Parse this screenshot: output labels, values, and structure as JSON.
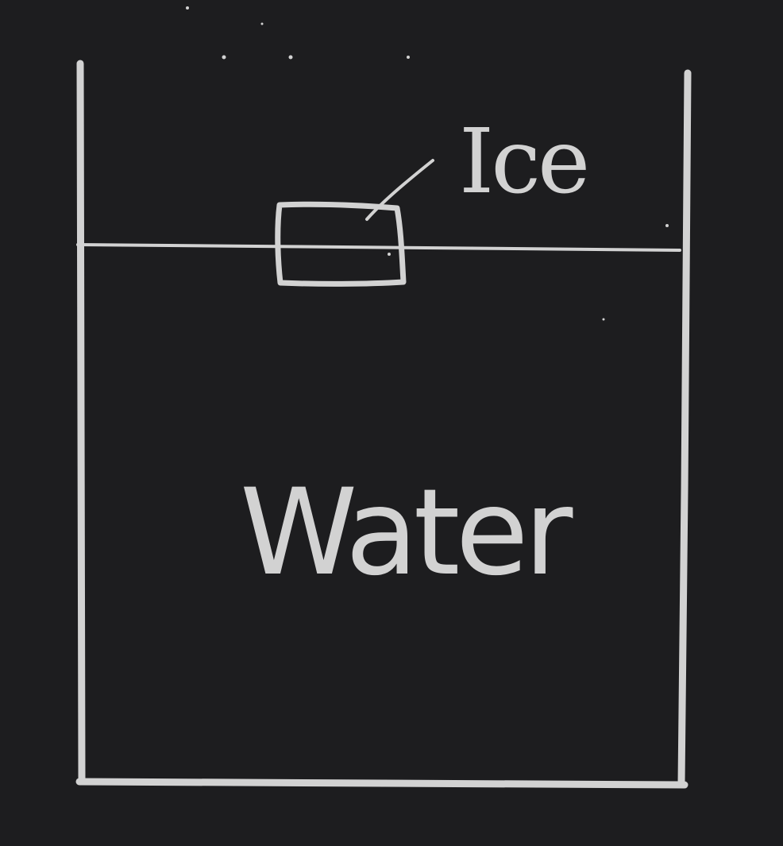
{
  "diagram": {
    "labels": {
      "ice": "Ice",
      "water": "Water"
    },
    "colors": {
      "background": "#1d1d1f",
      "ink": "#d2d2d2"
    }
  }
}
